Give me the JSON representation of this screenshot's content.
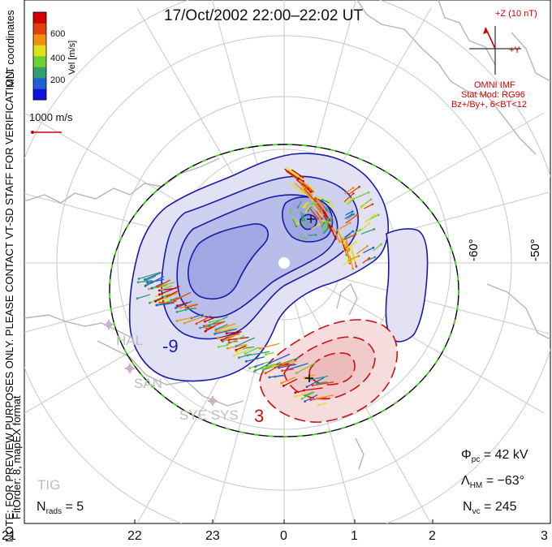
{
  "header": {
    "title": "17/Oct/2002 22:00–22:02 UT"
  },
  "color_bar": {
    "label": "Vel [m/s]",
    "ticks": [
      "600",
      "400",
      "200"
    ],
    "colors": [
      "#1010e0",
      "#2060d0",
      "#30a070",
      "#70d030",
      "#e0e020",
      "#f09010",
      "#e04010",
      "#d00000"
    ]
  },
  "side_labels": {
    "coords": "MLT coordinates",
    "note": "NOTE: FOR PREVIEW PURPOSES ONLY. PLEASE CONTACT VT-SD STAFF FOR VERIFICATION.",
    "fit": "FitOrder: 8, mapEX format"
  },
  "scale_vector": {
    "label": "1000 m/s"
  },
  "imf": {
    "z_label": "+Z (10 nT)",
    "y_label": "+Y",
    "title": "OMNI IMF",
    "model": "Stat Mod: RG96",
    "condition": "Bz+/By+, 6<BT<12"
  },
  "latitude_labels": [
    "-60°",
    "-50°"
  ],
  "contour_labels": {
    "negative": "-9",
    "positive": "3"
  },
  "stations": [
    "HAL",
    "SAN",
    "SYE SYS",
    "TIG"
  ],
  "stats": {
    "phi_pc": {
      "symbol": "Φ",
      "sub": "pc",
      "eq": "=",
      "value": "42 kV"
    },
    "lambda_hm": {
      "symbol": "Λ",
      "sub": "HM",
      "eq": "=",
      "value": "−63°"
    },
    "n_vc": {
      "symbol": "N",
      "sub": "vc",
      "eq": "=",
      "value": "245"
    },
    "n_rads": {
      "symbol": "N",
      "sub": "rads",
      "eq": "=",
      "value": "5"
    }
  },
  "mlt_axis": [
    "21",
    "22",
    "23",
    "0",
    "1",
    "2",
    "3"
  ]
}
